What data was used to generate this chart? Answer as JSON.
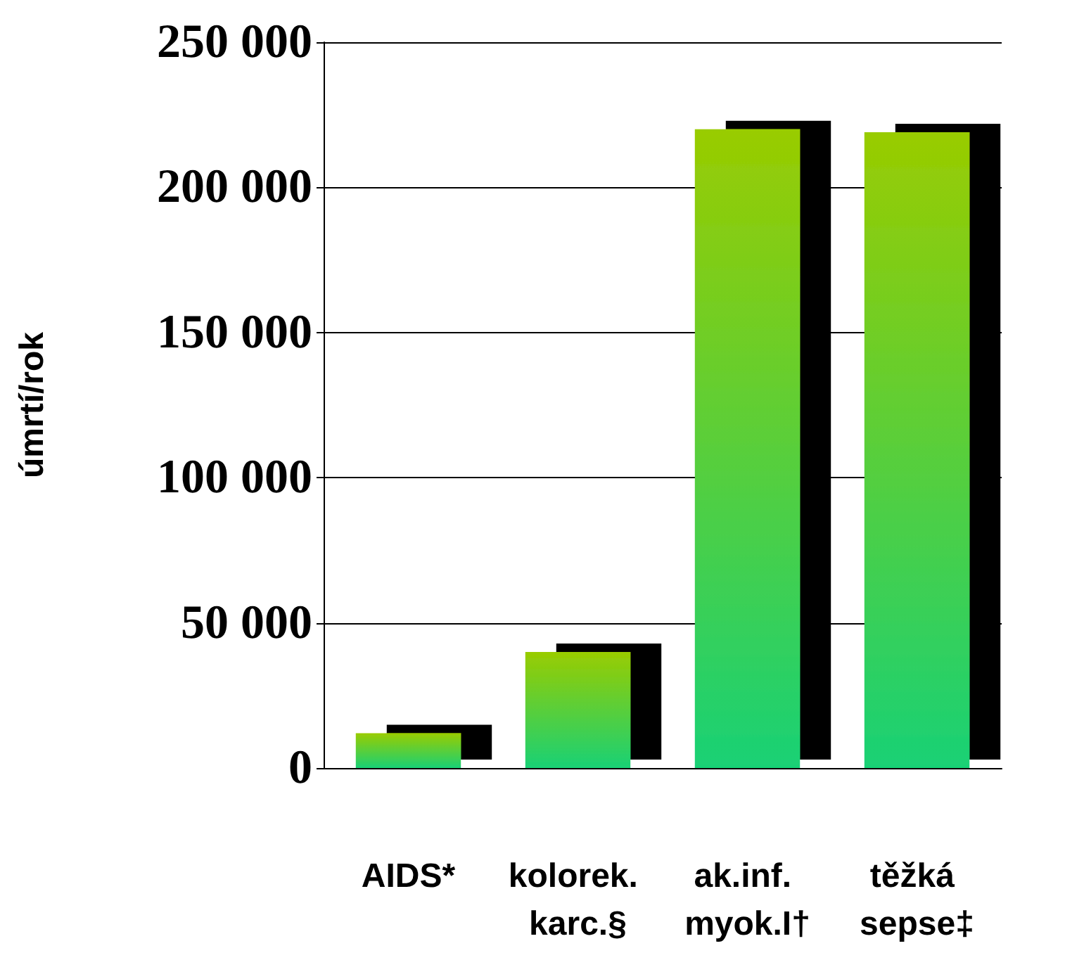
{
  "chart_data": {
    "type": "bar",
    "ylabel": "úmrtí/rok",
    "categories": [
      "AIDS*",
      "kolorek. karc.§",
      "ak.inf. myok.I†",
      "těžká sepse‡"
    ],
    "values": [
      12000,
      40000,
      220000,
      219000
    ],
    "color": "#99cc00",
    "ylim": [
      0,
      250000
    ],
    "yticks": [
      {
        "value": 0,
        "label": "0"
      },
      {
        "value": 50000,
        "label": "50 000"
      },
      {
        "value": 100000,
        "label": "100 000"
      },
      {
        "value": 150000,
        "label": "150 000"
      },
      {
        "value": 200000,
        "label": "200 000"
      },
      {
        "value": 250000,
        "label": "250 000"
      }
    ],
    "grid": "y"
  }
}
